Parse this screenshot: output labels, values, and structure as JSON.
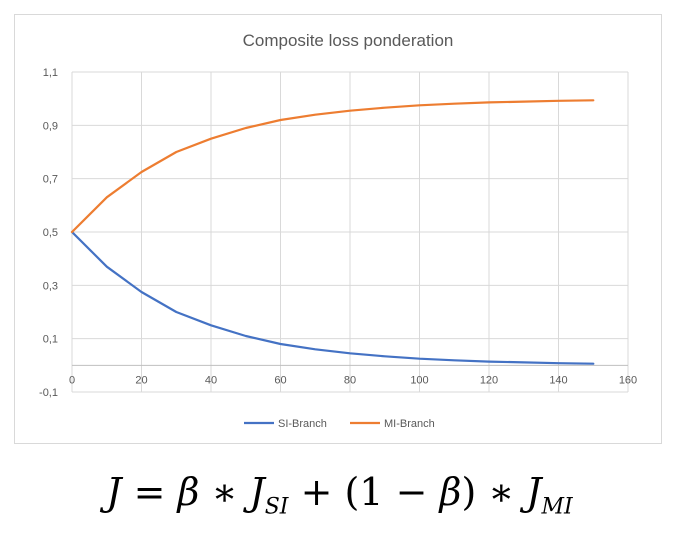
{
  "chart_data": {
    "type": "line",
    "title": "Composite loss ponderation",
    "xlabel": "",
    "ylabel": "",
    "xlim": [
      0,
      160
    ],
    "ylim": [
      -0.1,
      1.1
    ],
    "x_ticks": [
      0,
      20,
      40,
      60,
      80,
      100,
      120,
      140,
      160
    ],
    "x_tick_labels": [
      "0",
      "20",
      "40",
      "60",
      "80",
      "100",
      "120",
      "140",
      "160"
    ],
    "y_ticks": [
      -0.1,
      0.1,
      0.3,
      0.5,
      0.7,
      0.9,
      1.1
    ],
    "y_tick_labels": [
      "-0,1",
      "0,1",
      "0,3",
      "0,5",
      "0,7",
      "0,9",
      "1,1"
    ],
    "grid": "vertical-and-horizontal",
    "legend_position": "bottom",
    "x": [
      0,
      10,
      20,
      30,
      40,
      50,
      60,
      70,
      80,
      90,
      100,
      110,
      120,
      130,
      140,
      150
    ],
    "series": [
      {
        "name": "SI-Branch",
        "color": "#4472c4",
        "values": [
          0.5,
          0.37,
          0.275,
          0.2,
          0.15,
          0.11,
          0.08,
          0.06,
          0.045,
          0.034,
          0.025,
          0.019,
          0.014,
          0.011,
          0.008,
          0.006
        ]
      },
      {
        "name": "MI-Branch",
        "color": "#ed7d31",
        "values": [
          0.5,
          0.63,
          0.725,
          0.8,
          0.85,
          0.89,
          0.92,
          0.94,
          0.955,
          0.966,
          0.975,
          0.981,
          0.986,
          0.989,
          0.992,
          0.994
        ]
      }
    ]
  },
  "formula": {
    "J": "J",
    "eq": " = ",
    "beta1": "β",
    "op1": " ∗ ",
    "J_SI": "J",
    "sub_SI": "SI",
    "plus": " + (1 − ",
    "beta2": "β",
    "close": ") ∗ ",
    "J_MI": "J",
    "sub_MI": "MI"
  }
}
